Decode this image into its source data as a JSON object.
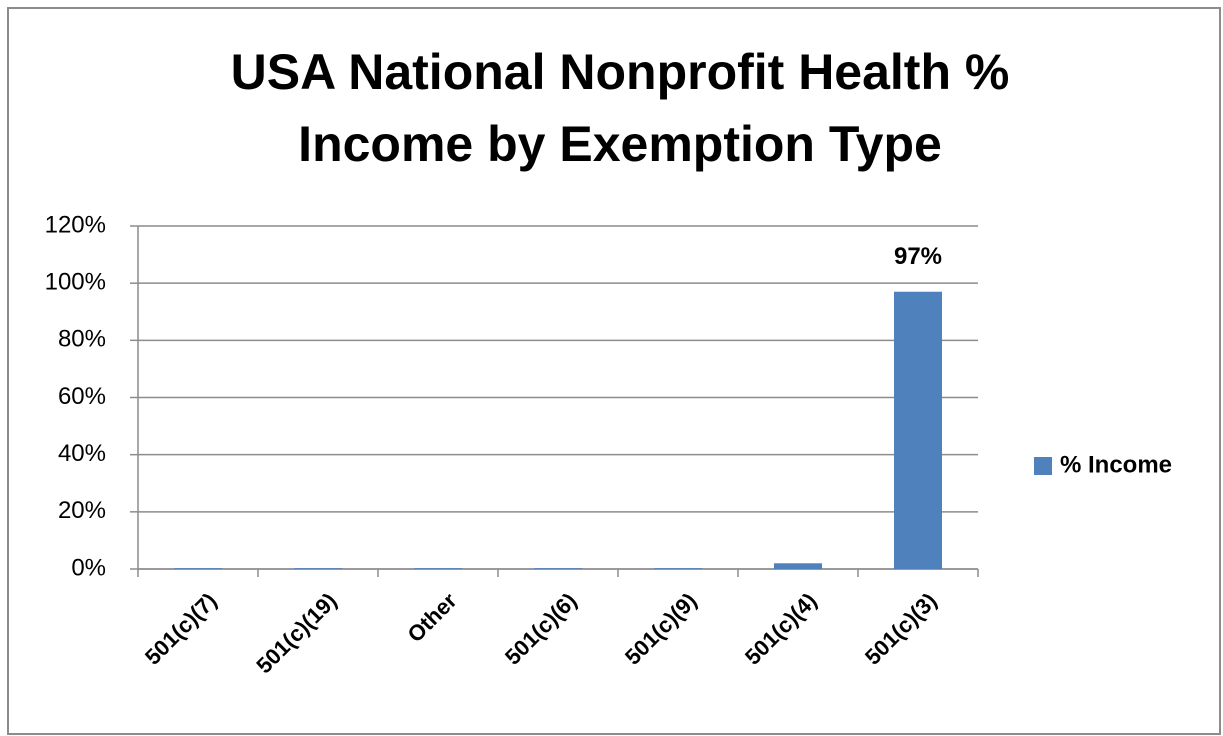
{
  "chart_data": {
    "type": "bar",
    "title": [
      "USA National Nonprofit Health %",
      "Income by Exemption Type"
    ],
    "categories": [
      "501(c)(7)",
      "501(c)(19)",
      "Other",
      "501(c)(6)",
      "501(c)(9)",
      "501(c)(4)",
      "501(c)(3)"
    ],
    "series": [
      {
        "name": "% Income",
        "color": "#4f81bd",
        "values": [
          0.3,
          0.3,
          0.3,
          0.3,
          0.3,
          2,
          97
        ],
        "value_labels": [
          null,
          null,
          null,
          null,
          null,
          null,
          "97%"
        ]
      }
    ],
    "ylim": [
      0,
      120
    ],
    "yticks": [
      {
        "value": 0,
        "label": "0%"
      },
      {
        "value": 20,
        "label": "20%"
      },
      {
        "value": 40,
        "label": "40%"
      },
      {
        "value": 60,
        "label": "60%"
      },
      {
        "value": 80,
        "label": "80%"
      },
      {
        "value": 100,
        "label": "100%"
      },
      {
        "value": 120,
        "label": "120%"
      }
    ],
    "grid": true,
    "legend": "right"
  }
}
